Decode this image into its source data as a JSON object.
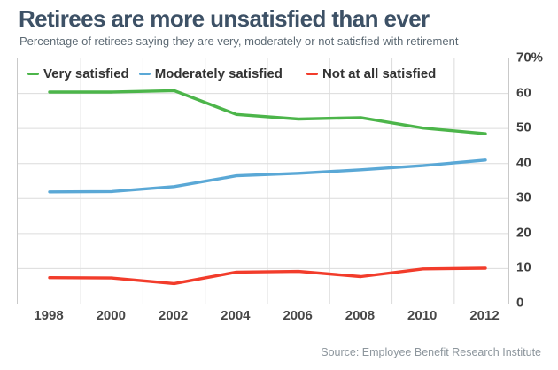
{
  "header": {
    "title": "Retirees are more unsatisfied than ever",
    "subtitle": "Percentage of retirees saying they are very, moderately or not satisfied with retirement"
  },
  "footer": {
    "source": "Source: Employee Benefit Research Institute"
  },
  "colors": {
    "title_text": "#3d5166",
    "subtitle_text": "#5d6a74",
    "grid": "#dcdcdc",
    "plot_border": "#c9c9c9",
    "tick_text": "#3f3f3f",
    "source_text": "#8d969d",
    "very_satisfied": "#4cb54a",
    "moderately_satisfied": "#5aa8d6",
    "not_at_all_satisfied": "#f23c2b"
  },
  "chart_data": {
    "type": "line",
    "x": [
      1998,
      2000,
      2002,
      2004,
      2006,
      2008,
      2010,
      2012
    ],
    "x_tick_labels": [
      "1998",
      "2000",
      "2002",
      "2004",
      "2006",
      "2008",
      "2010",
      "2012"
    ],
    "series": [
      {
        "name": "Very satisfied",
        "color": "#4cb54a",
        "values": [
          60.4,
          60.4,
          60.8,
          54.0,
          52.7,
          53.1,
          50.1,
          48.5
        ]
      },
      {
        "name": "Moderately satisfied",
        "color": "#5aa8d6",
        "values": [
          31.9,
          32.0,
          33.4,
          36.5,
          37.2,
          38.2,
          39.4,
          41.0
        ]
      },
      {
        "name": "Not at all satisfied",
        "color": "#f23c2b",
        "values": [
          7.4,
          7.3,
          5.7,
          9.0,
          9.2,
          7.7,
          9.9,
          10.1
        ]
      }
    ],
    "ylim": [
      0,
      70
    ],
    "y_ticks": [
      0,
      10,
      20,
      30,
      40,
      50,
      60,
      70
    ],
    "y_tick_labels": [
      "0",
      "10",
      "20",
      "30",
      "40",
      "50",
      "60",
      "70%"
    ],
    "grid": true,
    "gridlines_vertical": "between-ticks",
    "legend_position": "top-left-inside",
    "y_axis_side": "right"
  }
}
